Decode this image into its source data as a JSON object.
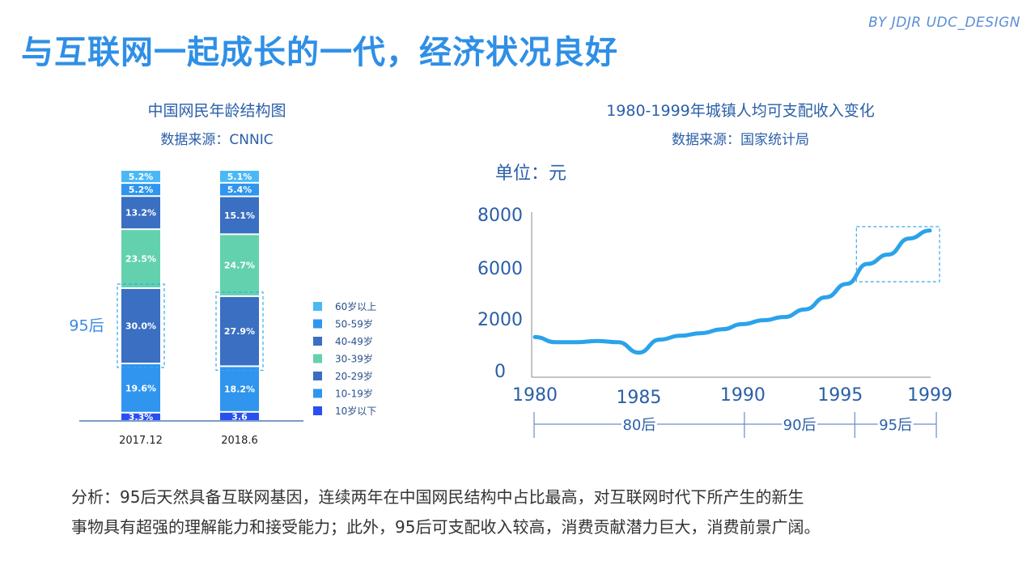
{
  "brand": "BY JDJR UDC_DESIGN",
  "title": "与互联网一起成长的一代，经济状况良好",
  "left_chart_title": "中国网民年龄结构图",
  "left_chart_source": "数据来源：CNNIC",
  "right_chart_title": "1980-1999年城镇人均可支配收入变化",
  "right_chart_source": "数据来源：国家统计局",
  "highlight_label": "95后",
  "unit_label": "单位：元",
  "colors": {
    "c60": "#4bb8f5",
    "c50": "#2f95ee",
    "c40": "#3a6fc2",
    "c30": "#63d1ad",
    "c20": "#3a6fc2",
    "c10": "#2f95ee",
    "c0": "#2a4ff0",
    "line": "#2aa3ea",
    "axis": "#2a5fa8"
  },
  "chart_data": [
    {
      "type": "bar",
      "categories": [
        "2017.12",
        "2018.6"
      ],
      "series": [
        {
          "name": "10岁以下",
          "values": [
            3.3,
            3.6
          ],
          "labels": [
            "3.3%",
            "3.6"
          ],
          "color_key": "c0"
        },
        {
          "name": "10-19岁",
          "values": [
            19.6,
            18.2
          ],
          "labels": [
            "19.6%",
            "18.2%"
          ],
          "color_key": "c10"
        },
        {
          "name": "20-29岁",
          "values": [
            30.0,
            27.9
          ],
          "labels": [
            "30.0%",
            "27.9%"
          ],
          "color_key": "c20"
        },
        {
          "name": "30-39岁",
          "values": [
            23.5,
            24.7
          ],
          "labels": [
            "23.5%",
            "24.7%"
          ],
          "color_key": "c30"
        },
        {
          "name": "40-49岁",
          "values": [
            13.2,
            15.1
          ],
          "labels": [
            "13.2%",
            "15.1%"
          ],
          "color_key": "c40"
        },
        {
          "name": "50-59岁",
          "values": [
            5.2,
            5.4
          ],
          "labels": [
            "5.2%",
            "5.4%"
          ],
          "color_key": "c50"
        },
        {
          "name": "60岁以上",
          "values": [
            5.2,
            5.1
          ],
          "labels": [
            "5.2%",
            "5.1%"
          ],
          "color_key": "c60"
        }
      ],
      "legend_order": [
        "60岁以上",
        "50-59岁",
        "40-49岁",
        "30-39岁",
        "20-29岁",
        "10-19岁",
        "10岁以下"
      ],
      "legend_position": "right",
      "stacked": true
    },
    {
      "type": "line",
      "x": [
        1980,
        1981,
        1982,
        1983,
        1984,
        1985,
        1986,
        1987,
        1988,
        1989,
        1990,
        1991,
        1992,
        1993,
        1994,
        1995,
        1996,
        1997,
        1998,
        1999
      ],
      "y": [
        1300,
        1100,
        1100,
        1150,
        1100,
        700,
        1200,
        1350,
        1450,
        1600,
        1800,
        1950,
        2150,
        2750,
        3700,
        4750,
        6150,
        6500,
        7100,
        7400
      ],
      "ylim": [
        0,
        8000
      ],
      "ytick_labels": [
        "0",
        "2000",
        "6000",
        "8000"
      ],
      "ytick_values": [
        0,
        2000,
        6000,
        8000
      ],
      "xtick_labels": [
        "1980",
        "1985",
        "1990",
        "1995",
        "1999"
      ],
      "xtick_values": [
        1980,
        1985,
        1990,
        1995,
        1999
      ],
      "generations": [
        {
          "label": "80后",
          "from": 1980,
          "to": 1990
        },
        {
          "label": "90后",
          "from": 1990,
          "to": 1995
        },
        {
          "label": "95后",
          "from": 1995,
          "to": 1999
        }
      ],
      "highlight_range": [
        1995,
        1999
      ]
    }
  ],
  "analysis_line1": "分析：95后天然具备互联网基因，连续两年在中国网民结构中占比最高，对互联网时代下所产生的新生",
  "analysis_line2": "事物具有超强的理解能力和接受能力；此外，95后可支配收入较高，消费贡献潜力巨大，消费前景广阔。"
}
